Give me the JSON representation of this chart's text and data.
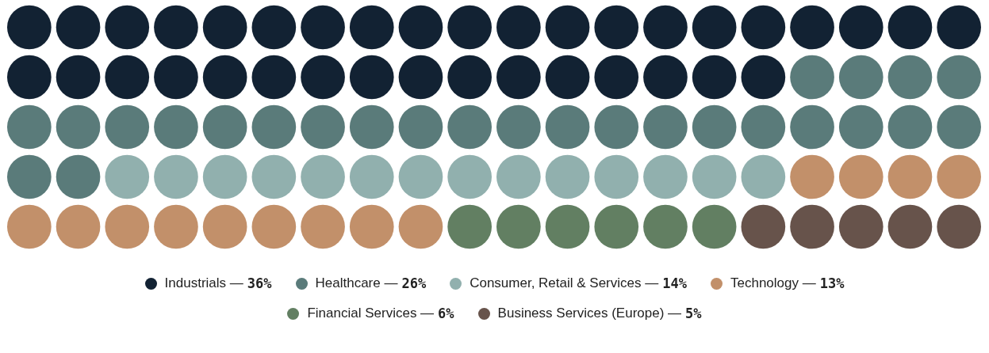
{
  "chart_data": {
    "type": "other",
    "categories": [
      "Industrials —",
      "Healthcare —",
      "Consumer, Retail & Services —",
      "Technology —",
      "Financial Services —",
      "Business Services (Europe) —"
    ],
    "values": [
      36,
      26,
      14,
      13,
      6,
      5
    ],
    "value_labels": [
      "36%",
      "26%",
      "14%",
      "13%",
      "6%",
      "5%"
    ],
    "colors": [
      "#122233",
      "#5a7b7a",
      "#91b0ae",
      "#c2906a",
      "#627f62",
      "#67534b"
    ]
  }
}
